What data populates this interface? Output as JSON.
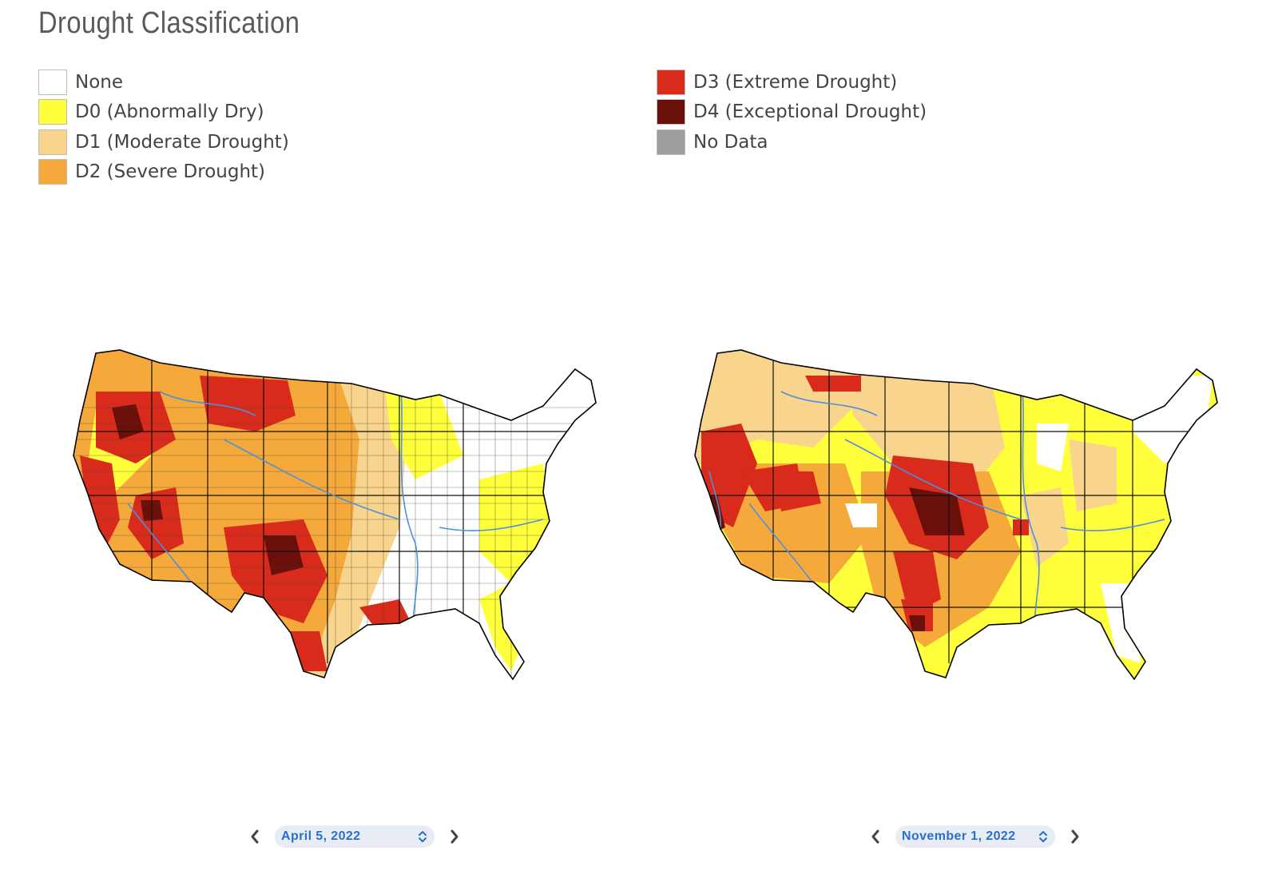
{
  "title": "Drought Classification",
  "legend": {
    "left": [
      {
        "label": "None",
        "color": "#ffffff"
      },
      {
        "label": "D0 (Abnormally Dry)",
        "color": "#ffff3c"
      },
      {
        "label": "D1 (Moderate Drought)",
        "color": "#f8d48c"
      },
      {
        "label": "D2 (Severe Drought)",
        "color": "#f5a93a"
      }
    ],
    "right": [
      {
        "label": "D3 (Extreme Drought)",
        "color": "#d82b1c"
      },
      {
        "label": "D4 (Exceptional Drought)",
        "color": "#6b0f0b"
      },
      {
        "label": "No Data",
        "color": "#9e9e9e"
      }
    ]
  },
  "maps": {
    "left": {
      "date": "April 5, 2022"
    },
    "right": {
      "date": "November 1, 2022"
    }
  },
  "icons": {
    "prev": "chevron-left-icon",
    "next": "chevron-right-icon",
    "select": "up-down-chevron-icon"
  }
}
